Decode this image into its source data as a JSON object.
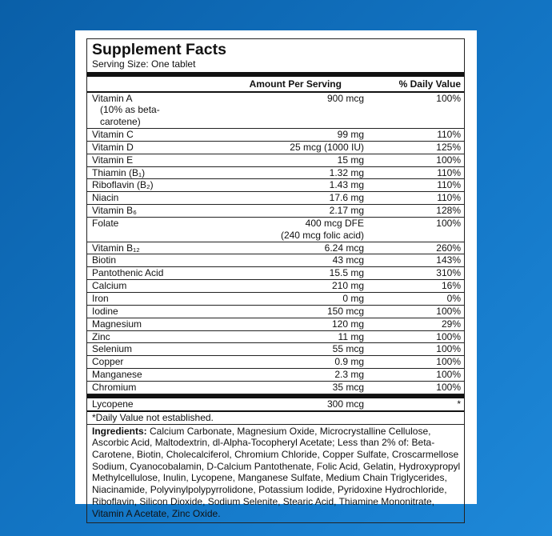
{
  "header": {
    "title": "Supplement Facts",
    "serving": "Serving Size: One tablet"
  },
  "table": {
    "columns": [
      "Amount Per Serving",
      "% Daily Value"
    ],
    "rows": [
      {
        "nutrient": "Vitamin A",
        "note": "(10% as beta-carotene)",
        "amount": "900 mcg",
        "dv": "100%"
      },
      {
        "nutrient": "Vitamin C",
        "amount": "99 mg",
        "dv": "110%"
      },
      {
        "nutrient": "Vitamin D",
        "amount": "25 mcg (1000 IU)",
        "dv": "125%"
      },
      {
        "nutrient": "Vitamin E",
        "amount": "15 mg",
        "dv": "100%"
      },
      {
        "nutrient": "Thiamin (B₁)",
        "amount": "1.32 mg",
        "dv": "110%"
      },
      {
        "nutrient": "Riboflavin (B₂)",
        "amount": "1.43 mg",
        "dv": "110%"
      },
      {
        "nutrient": "Niacin",
        "amount": "17.6 mg",
        "dv": "110%"
      },
      {
        "nutrient": "Vitamin B₆",
        "amount": "2.17 mg",
        "dv": "128%"
      },
      {
        "nutrient": "Folate",
        "amount": "400 mcg DFE",
        "amount_note": "(240 mcg folic acid)",
        "dv": "100%"
      },
      {
        "nutrient": "Vitamin B₁₂",
        "amount": "6.24 mcg",
        "dv": "260%"
      },
      {
        "nutrient": "Biotin",
        "amount": "43 mcg",
        "dv": "143%"
      },
      {
        "nutrient": "Pantothenic Acid",
        "amount": "15.5 mg",
        "dv": "310%"
      },
      {
        "nutrient": "Calcium",
        "amount": "210 mg",
        "dv": "16%"
      },
      {
        "nutrient": "Iron",
        "amount": "0 mg",
        "dv": "0%"
      },
      {
        "nutrient": "Iodine",
        "amount": "150 mcg",
        "dv": "100%"
      },
      {
        "nutrient": "Magnesium",
        "amount": "120 mg",
        "dv": "29%"
      },
      {
        "nutrient": "Zinc",
        "amount": "11 mg",
        "dv": "100%"
      },
      {
        "nutrient": "Selenium",
        "amount": "55 mcg",
        "dv": "100%"
      },
      {
        "nutrient": "Copper",
        "amount": "0.9 mg",
        "dv": "100%"
      },
      {
        "nutrient": "Manganese",
        "amount": "2.3 mg",
        "dv": "100%"
      },
      {
        "nutrient": "Chromium",
        "amount": "35 mcg",
        "dv": "100%"
      }
    ],
    "extra_rows": [
      {
        "nutrient": "Lycopene",
        "amount": "300 mcg",
        "dv": "*"
      }
    ]
  },
  "footnote": "*Daily Value not established.",
  "ingredients": {
    "label": "Ingredients:",
    "text": "Calcium Carbonate, Magnesium Oxide, Microcrystalline Cellulose, Ascorbic Acid, Maltodextrin, dl-Alpha-Tocopheryl Acetate; Less than 2% of: Beta-Carotene, Biotin, Cholecalciferol, Chromium Chloride, Copper Sulfate, Croscarmellose Sodium, Cyanocobalamin, D-Calcium Pantothenate, Folic Acid, Gelatin, Hydroxypropyl Methylcellulose, Inulin, Lycopene, Manganese Sulfate, Medium Chain Triglycerides, Niacinamide, Polyvinylpolypyrrolidone, Potassium Iodide, Pyridoxine Hydrochloride, Riboflavin, Silicon Dioxide, Sodium Selenite, Stearic Acid, Thiamine Mononitrate, Vitamin A Acetate, Zinc Oxide."
  }
}
